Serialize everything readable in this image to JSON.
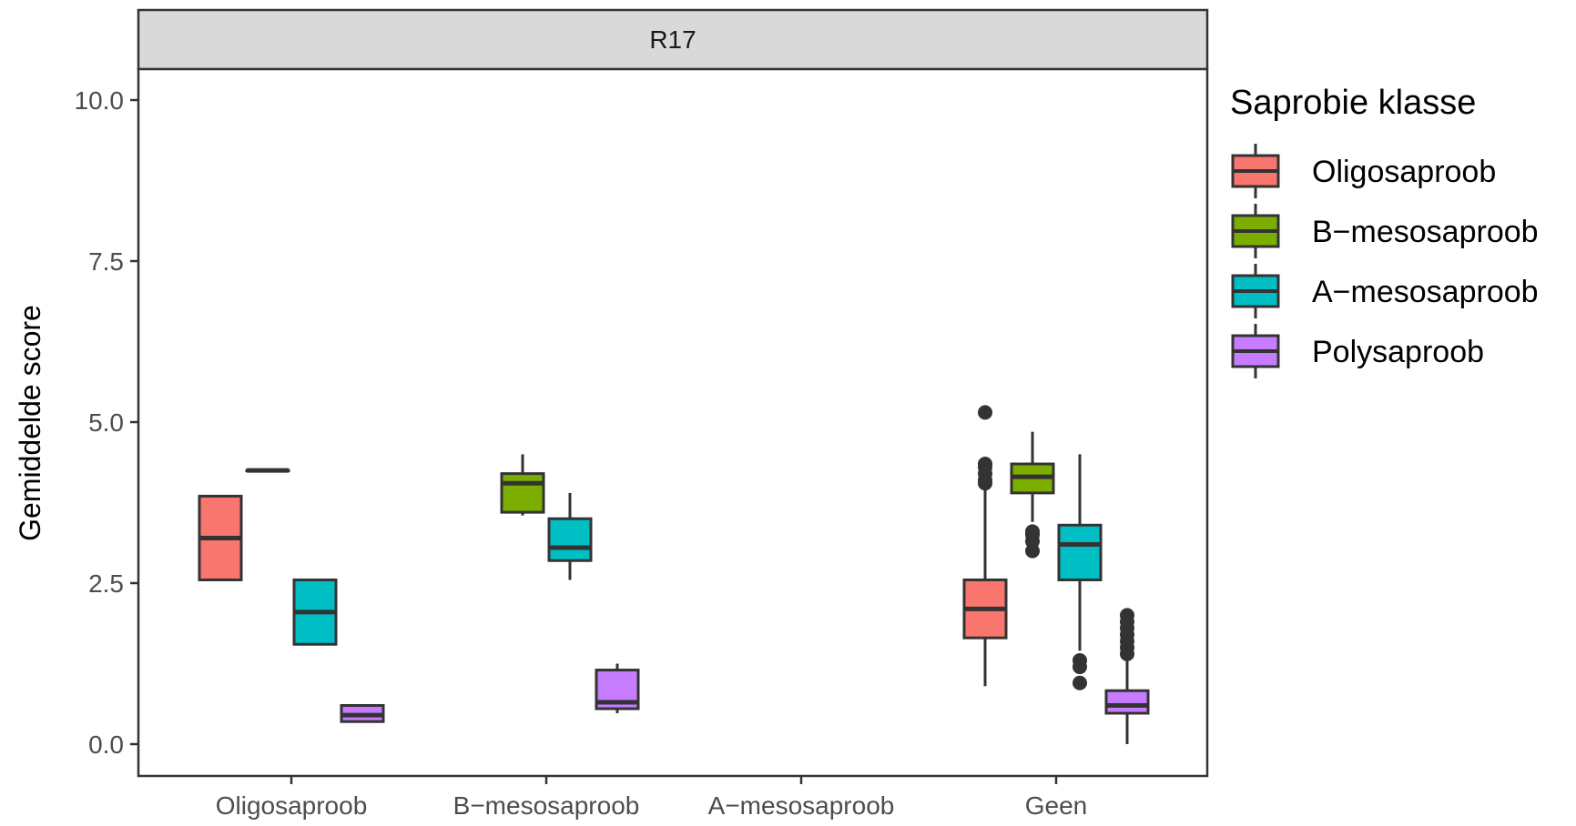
{
  "chart_data": {
    "type": "boxplot",
    "facet_label": "R17",
    "xlabel": "",
    "ylabel": "Gemiddelde score",
    "ylim": [
      -0.5,
      10.5
    ],
    "yticks": [
      "0.0",
      "2.5",
      "5.0",
      "7.5",
      "10.0"
    ],
    "ytick_values": [
      0,
      2.5,
      5,
      7.5,
      10
    ],
    "categories": [
      "Oligosaproob",
      "B−mesosaproob",
      "A−mesosaproob",
      "Geen"
    ],
    "legend": {
      "title": "Saprobie klasse",
      "position": "right",
      "entries": [
        "Oligosaproob",
        "B−mesosaproob",
        "A−mesosaproob",
        "Polysaproob"
      ]
    },
    "series": [
      {
        "name": "Oligosaproob",
        "color": "#F8766D",
        "boxes": [
          {
            "category": 0,
            "min": 2.55,
            "q1": 2.55,
            "median": 3.2,
            "q3": 3.85,
            "max": 3.85,
            "outliers": []
          },
          null,
          null,
          {
            "category": 3,
            "min": 0.9,
            "q1": 1.65,
            "median": 2.1,
            "q3": 2.55,
            "max": 3.95,
            "outliers": [
              4.05,
              4.1,
              4.2,
              4.3,
              4.35,
              5.15
            ]
          }
        ]
      },
      {
        "name": "B−mesosaproob",
        "color": "#7CAE00",
        "boxes": [
          {
            "category": 0,
            "min": 4.25,
            "q1": 4.25,
            "median": 4.25,
            "q3": 4.25,
            "max": 4.25,
            "outliers": []
          },
          {
            "category": 1,
            "min": 3.55,
            "q1": 3.6,
            "median": 4.05,
            "q3": 4.2,
            "max": 4.5,
            "outliers": []
          },
          null,
          {
            "category": 3,
            "min": 3.45,
            "q1": 3.9,
            "median": 4.15,
            "q3": 4.35,
            "max": 4.85,
            "outliers": [
              3.0,
              3.15,
              3.25,
              3.3
            ]
          }
        ]
      },
      {
        "name": "A−mesosaproob",
        "color": "#00BFC4",
        "boxes": [
          {
            "category": 0,
            "min": 1.55,
            "q1": 1.55,
            "median": 2.05,
            "q3": 2.55,
            "max": 2.55,
            "outliers": []
          },
          {
            "category": 1,
            "min": 2.55,
            "q1": 2.85,
            "median": 3.05,
            "q3": 3.5,
            "max": 3.9,
            "outliers": []
          },
          null,
          {
            "category": 3,
            "min": 1.45,
            "q1": 2.55,
            "median": 3.1,
            "q3": 3.4,
            "max": 4.5,
            "outliers": [
              0.95,
              1.2,
              1.3
            ]
          }
        ]
      },
      {
        "name": "Polysaproob",
        "color": "#C77CFF",
        "boxes": [
          {
            "category": 0,
            "min": 0.35,
            "q1": 0.35,
            "median": 0.45,
            "q3": 0.6,
            "max": 0.6,
            "outliers": []
          },
          {
            "category": 1,
            "min": 0.48,
            "q1": 0.55,
            "median": 0.65,
            "q3": 1.15,
            "max": 1.25,
            "outliers": []
          },
          null,
          {
            "category": 3,
            "min": 0.0,
            "q1": 0.48,
            "median": 0.6,
            "q3": 0.83,
            "max": 1.3,
            "outliers": [
              1.4,
              1.5,
              1.6,
              1.7,
              1.8,
              1.9,
              2.0
            ]
          }
        ]
      }
    ]
  }
}
